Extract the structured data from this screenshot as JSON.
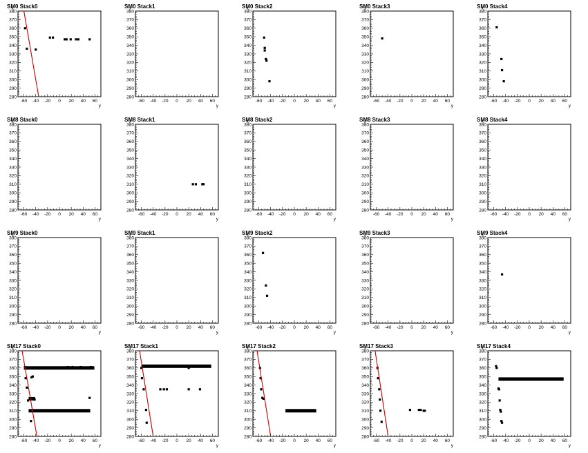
{
  "style": {
    "fit_line_color": "#cc0000",
    "point_color": "#000000",
    "axes_color": "#000000",
    "background": "#ffffff"
  },
  "chart_data": [
    {
      "type": "scatter",
      "title": "SM0 Stack0",
      "xlabel": "y",
      "ylabel": "x",
      "xlim": [
        -70,
        70
      ],
      "ylim": [
        280,
        380
      ],
      "xticks": [
        -60,
        -40,
        -20,
        0,
        20,
        40,
        60
      ],
      "yticks": [
        280,
        290,
        300,
        310,
        320,
        330,
        340,
        350,
        360,
        370,
        380
      ],
      "points": [
        [
          -58,
          360
        ],
        [
          -55,
          336
        ],
        [
          -40,
          335
        ],
        [
          -16,
          349
        ],
        [
          -11,
          349
        ],
        [
          9,
          347
        ],
        [
          12,
          347
        ],
        [
          19,
          347
        ],
        [
          28,
          347
        ],
        [
          32,
          347
        ],
        [
          51,
          347
        ]
      ],
      "fit_line": [
        [
          -60,
          380
        ],
        [
          -35,
          280
        ]
      ]
    },
    {
      "type": "scatter",
      "title": "SM0 Stack1",
      "xlabel": "y",
      "ylabel": "x",
      "xlim": [
        -70,
        70
      ],
      "ylim": [
        280,
        380
      ],
      "xticks": [
        -60,
        -40,
        -20,
        0,
        20,
        40,
        60
      ],
      "yticks": [
        280,
        290,
        300,
        310,
        320,
        330,
        340,
        350,
        360,
        370,
        380
      ],
      "points": []
    },
    {
      "type": "scatter",
      "title": "SM0 Stack2",
      "xlabel": "y",
      "ylabel": "x",
      "xlim": [
        -70,
        70
      ],
      "ylim": [
        280,
        380
      ],
      "xticks": [
        -60,
        -40,
        -20,
        0,
        20,
        40,
        60
      ],
      "yticks": [
        280,
        290,
        300,
        310,
        320,
        330,
        340,
        350,
        360,
        370,
        380
      ],
      "points": [
        [
          -51,
          349
        ],
        [
          -50,
          337
        ],
        [
          -50,
          334
        ],
        [
          -48,
          324
        ],
        [
          -47,
          322
        ],
        [
          -42,
          298
        ]
      ]
    },
    {
      "type": "scatter",
      "title": "SM0 Stack3",
      "xlabel": "y",
      "ylabel": "x",
      "xlim": [
        -70,
        70
      ],
      "ylim": [
        280,
        380
      ],
      "xticks": [
        -60,
        -40,
        -20,
        0,
        20,
        40,
        60
      ],
      "yticks": [
        280,
        290,
        300,
        310,
        320,
        330,
        340,
        350,
        360,
        370,
        380
      ],
      "points": [
        [
          -50,
          348
        ]
      ]
    },
    {
      "type": "scatter",
      "title": "SM0 Stack4",
      "xlabel": "y",
      "ylabel": "x",
      "xlim": [
        -70,
        70
      ],
      "ylim": [
        280,
        380
      ],
      "xticks": [
        -60,
        -40,
        -20,
        0,
        20,
        40,
        60
      ],
      "yticks": [
        280,
        290,
        300,
        310,
        320,
        330,
        340,
        350,
        360,
        370,
        380
      ],
      "points": [
        [
          -55,
          361
        ],
        [
          -47,
          324
        ],
        [
          -46,
          311
        ],
        [
          -43,
          298
        ]
      ]
    },
    {
      "type": "scatter",
      "title": "SM8 Stack0",
      "xlabel": "y",
      "ylabel": "x",
      "xlim": [
        -70,
        70
      ],
      "ylim": [
        280,
        380
      ],
      "xticks": [
        -60,
        -40,
        -20,
        0,
        20,
        40,
        60
      ],
      "yticks": [
        280,
        290,
        300,
        310,
        320,
        330,
        340,
        350,
        360,
        370,
        380
      ],
      "points": []
    },
    {
      "type": "scatter",
      "title": "SM8 Stack1",
      "xlabel": "y",
      "ylabel": "x",
      "xlim": [
        -70,
        70
      ],
      "ylim": [
        280,
        380
      ],
      "xticks": [
        -60,
        -40,
        -20,
        0,
        20,
        40,
        60
      ],
      "yticks": [
        280,
        290,
        300,
        310,
        320,
        330,
        340,
        350,
        360,
        370,
        380
      ],
      "points": [
        [
          27,
          310
        ],
        [
          32,
          310
        ],
        [
          43,
          310
        ],
        [
          45,
          310
        ]
      ]
    },
    {
      "type": "scatter",
      "title": "SM8 Stack2",
      "xlabel": "y",
      "ylabel": "x",
      "xlim": [
        -70,
        70
      ],
      "ylim": [
        280,
        380
      ],
      "xticks": [
        -60,
        -40,
        -20,
        0,
        20,
        40,
        60
      ],
      "yticks": [
        280,
        290,
        300,
        310,
        320,
        330,
        340,
        350,
        360,
        370,
        380
      ],
      "points": []
    },
    {
      "type": "scatter",
      "title": "SM8 Stack3",
      "xlabel": "y",
      "ylabel": "x",
      "xlim": [
        -70,
        70
      ],
      "ylim": [
        280,
        380
      ],
      "xticks": [
        -60,
        -40,
        -20,
        0,
        20,
        40,
        60
      ],
      "yticks": [
        280,
        290,
        300,
        310,
        320,
        330,
        340,
        350,
        360,
        370,
        380
      ],
      "points": []
    },
    {
      "type": "scatter",
      "title": "SM8 Stack4",
      "xlabel": "y",
      "ylabel": "x",
      "xlim": [
        -70,
        70
      ],
      "ylim": [
        280,
        380
      ],
      "xticks": [
        -60,
        -40,
        -20,
        0,
        20,
        40,
        60
      ],
      "yticks": [
        280,
        290,
        300,
        310,
        320,
        330,
        340,
        350,
        360,
        370,
        380
      ],
      "points": []
    },
    {
      "type": "scatter",
      "title": "SM9 Stack0",
      "xlabel": "y",
      "ylabel": "x",
      "xlim": [
        -70,
        70
      ],
      "ylim": [
        280,
        380
      ],
      "xticks": [
        -60,
        -40,
        -20,
        0,
        20,
        40,
        60
      ],
      "yticks": [
        280,
        290,
        300,
        310,
        320,
        330,
        340,
        350,
        360,
        370,
        380
      ],
      "points": []
    },
    {
      "type": "scatter",
      "title": "SM9 Stack1",
      "xlabel": "y",
      "ylabel": "x",
      "xlim": [
        -70,
        70
      ],
      "ylim": [
        280,
        380
      ],
      "xticks": [
        -60,
        -40,
        -20,
        0,
        20,
        40,
        60
      ],
      "yticks": [
        280,
        290,
        300,
        310,
        320,
        330,
        340,
        350,
        360,
        370,
        380
      ],
      "points": []
    },
    {
      "type": "scatter",
      "title": "SM9 Stack2",
      "xlabel": "y",
      "ylabel": "x",
      "xlim": [
        -70,
        70
      ],
      "ylim": [
        280,
        380
      ],
      "xticks": [
        -60,
        -40,
        -20,
        0,
        20,
        40,
        60
      ],
      "yticks": [
        280,
        290,
        300,
        310,
        320,
        330,
        340,
        350,
        360,
        370,
        380
      ],
      "points": [
        [
          -53,
          362
        ],
        [
          -48,
          324
        ],
        [
          -46,
          312
        ]
      ]
    },
    {
      "type": "scatter",
      "title": "SM9 Stack3",
      "xlabel": "y",
      "ylabel": "x",
      "xlim": [
        -70,
        70
      ],
      "ylim": [
        280,
        380
      ],
      "xticks": [
        -60,
        -40,
        -20,
        0,
        20,
        40,
        60
      ],
      "yticks": [
        280,
        290,
        300,
        310,
        320,
        330,
        340,
        350,
        360,
        370,
        380
      ],
      "points": []
    },
    {
      "type": "scatter",
      "title": "SM9 Stack4",
      "xlabel": "y",
      "ylabel": "x",
      "xlim": [
        -70,
        70
      ],
      "ylim": [
        280,
        380
      ],
      "xticks": [
        -60,
        -40,
        -20,
        0,
        20,
        40,
        60
      ],
      "yticks": [
        280,
        290,
        300,
        310,
        320,
        330,
        340,
        350,
        360,
        370,
        380
      ],
      "points": [
        [
          -46,
          337
        ]
      ]
    },
    {
      "type": "scatter",
      "title": "SM17 Stack0",
      "xlabel": "y",
      "ylabel": "x",
      "xlim": [
        -70,
        70
      ],
      "ylim": [
        280,
        380
      ],
      "xticks": [
        -60,
        -40,
        -20,
        0,
        20,
        40,
        60
      ],
      "yticks": [
        280,
        290,
        300,
        310,
        320,
        330,
        340,
        350,
        360,
        370,
        380
      ],
      "points": [
        [
          -58,
          361
        ],
        [
          -57,
          348
        ],
        [
          -55,
          337
        ],
        [
          -53,
          322
        ],
        [
          -49,
          310
        ],
        [
          -48,
          298
        ],
        [
          -47,
          349
        ],
        [
          -45,
          350
        ],
        [
          -42,
          323
        ],
        [
          -6,
          360
        ],
        [
          14,
          361
        ],
        [
          22,
          361
        ],
        [
          36,
          361
        ],
        [
          51,
          325
        ],
        [
          53,
          361
        ]
      ],
      "segments": [
        [
          -60,
          59,
          360
        ],
        [
          -52,
          52,
          310
        ],
        [
          -52,
          -41,
          324
        ]
      ],
      "fit_line": [
        [
          -63,
          380
        ],
        [
          -38,
          280
        ]
      ]
    },
    {
      "type": "scatter",
      "title": "SM17 Stack1",
      "xlabel": "y",
      "ylabel": "x",
      "xlim": [
        -70,
        70
      ],
      "ylim": [
        280,
        380
      ],
      "xticks": [
        -60,
        -40,
        -20,
        0,
        20,
        40,
        60
      ],
      "yticks": [
        280,
        290,
        300,
        310,
        320,
        330,
        340,
        350,
        360,
        370,
        380
      ],
      "points": [
        [
          -60,
          360
        ],
        [
          -59,
          348
        ],
        [
          -56,
          335
        ],
        [
          -52,
          311
        ],
        [
          -51,
          296
        ],
        [
          -28,
          335
        ],
        [
          -22,
          335
        ],
        [
          -17,
          335
        ],
        [
          20,
          335
        ],
        [
          20,
          360
        ],
        [
          39,
          335
        ]
      ],
      "segments": [
        [
          -60,
          58,
          362
        ]
      ],
      "fit_line": [
        [
          -63,
          380
        ],
        [
          -40,
          280
        ]
      ]
    },
    {
      "type": "scatter",
      "title": "SM17 Stack2",
      "xlabel": "y",
      "ylabel": "x",
      "xlim": [
        -70,
        70
      ],
      "ylim": [
        280,
        380
      ],
      "xticks": [
        -60,
        -40,
        -20,
        0,
        20,
        40,
        60
      ],
      "yticks": [
        280,
        290,
        300,
        310,
        320,
        330,
        340,
        350,
        360,
        370,
        380
      ],
      "points": [
        [
          -58,
          360
        ],
        [
          -57,
          348
        ],
        [
          -56,
          335
        ],
        [
          -54,
          325
        ],
        [
          -52,
          324
        ]
      ],
      "segments": [
        [
          -15,
          37,
          310
        ]
      ],
      "fit_line": [
        [
          -63,
          380
        ],
        [
          -40,
          280
        ]
      ]
    },
    {
      "type": "scatter",
      "title": "SM17 Stack3",
      "xlabel": "y",
      "ylabel": "x",
      "xlim": [
        -70,
        70
      ],
      "ylim": [
        280,
        380
      ],
      "xticks": [
        -60,
        -40,
        -20,
        0,
        20,
        40,
        60
      ],
      "yticks": [
        280,
        290,
        300,
        310,
        320,
        330,
        340,
        350,
        360,
        370,
        380
      ],
      "points": [
        [
          -58,
          360
        ],
        [
          -57,
          348
        ],
        [
          -55,
          335
        ],
        [
          -54,
          323
        ],
        [
          -53,
          310
        ],
        [
          -51,
          297
        ],
        [
          -3,
          311
        ],
        [
          12,
          311
        ],
        [
          15,
          311
        ],
        [
          20,
          310
        ],
        [
          22,
          310
        ]
      ],
      "fit_line": [
        [
          -62,
          380
        ],
        [
          -40,
          280
        ]
      ]
    },
    {
      "type": "scatter",
      "title": "SM17 Stack4",
      "xlabel": "y",
      "ylabel": "x",
      "xlim": [
        -70,
        70
      ],
      "ylim": [
        280,
        380
      ],
      "xticks": [
        -60,
        -40,
        -20,
        0,
        20,
        40,
        60
      ],
      "yticks": [
        280,
        290,
        300,
        310,
        320,
        330,
        340,
        350,
        360,
        370,
        380
      ],
      "points": [
        [
          -56,
          362
        ],
        [
          -55,
          360
        ],
        [
          -52,
          336
        ],
        [
          -51,
          335
        ],
        [
          -50,
          322
        ],
        [
          -49,
          311
        ],
        [
          -48,
          309
        ],
        [
          -47,
          298
        ],
        [
          -46,
          296
        ]
      ],
      "segments": [
        [
          -52,
          58,
          347
        ]
      ]
    }
  ]
}
